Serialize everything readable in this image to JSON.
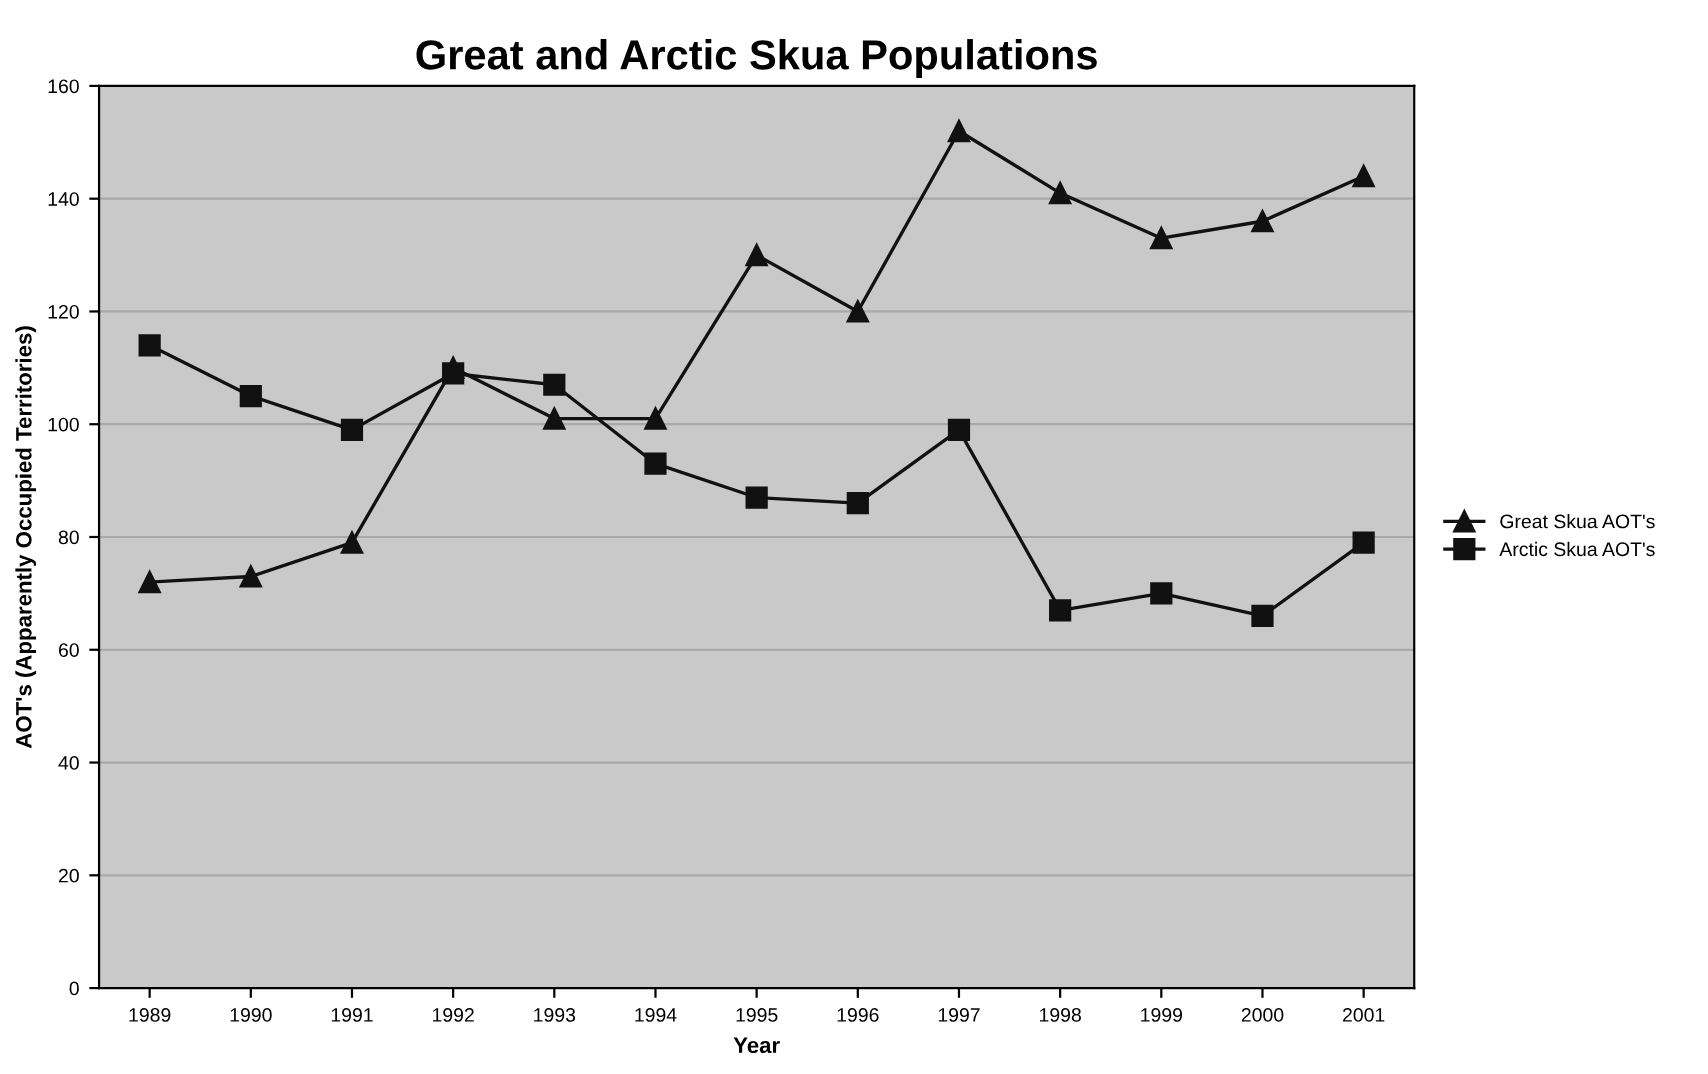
{
  "chart_data": {
    "type": "line",
    "title": "Great and Arctic Skua Populations",
    "xlabel": "Year",
    "ylabel": "AOT's (Apparently Occupied Territories)",
    "categories": [
      "1989",
      "1990",
      "1991",
      "1992",
      "1993",
      "1994",
      "1995",
      "1996",
      "1997",
      "1998",
      "1999",
      "2000",
      "2001"
    ],
    "series": [
      {
        "name": "Great Skua AOT's",
        "color": "#111111",
        "marker": "triangle",
        "values": [
          72,
          73,
          79,
          110,
          101,
          101,
          130,
          120,
          152,
          141,
          133,
          136,
          144
        ]
      },
      {
        "name": "Arctic Skua AOT's",
        "color": "#111111",
        "marker": "square",
        "values": [
          114,
          105,
          99,
          109,
          107,
          93,
          87,
          86,
          99,
          67,
          70,
          66,
          79
        ]
      }
    ],
    "ylim": [
      0,
      160
    ],
    "yticks": [
      0,
      20,
      40,
      60,
      80,
      100,
      120,
      140,
      160
    ],
    "grid": "y",
    "legend": "right",
    "line_style": "solid"
  }
}
